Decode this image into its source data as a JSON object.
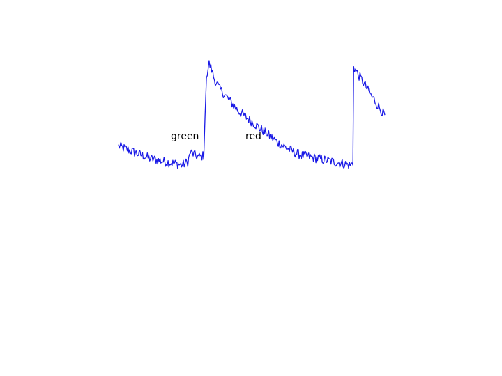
{
  "chart_data": {
    "type": "line",
    "title": "",
    "xlabel": "",
    "ylabel": "",
    "grid": false,
    "axes_visible": false,
    "line_color": "#1a1ae6",
    "annotations": [
      {
        "text": "green"
      },
      {
        "text": "red"
      }
    ],
    "xlim": [
      0,
      100
    ],
    "ylim": [
      0,
      100
    ],
    "series": [
      {
        "values": [
          [
            0,
            44
          ],
          [
            3,
            42
          ],
          [
            6,
            40
          ],
          [
            9,
            38
          ],
          [
            12,
            36
          ],
          [
            15,
            35
          ],
          [
            18,
            34
          ],
          [
            21,
            33
          ],
          [
            24,
            32
          ],
          [
            26,
            34
          ],
          [
            27,
            40
          ],
          [
            28,
            39
          ],
          [
            30,
            37
          ],
          [
            32,
            38
          ],
          [
            33,
            87
          ],
          [
            34,
            96
          ],
          [
            35,
            92
          ],
          [
            36,
            86
          ],
          [
            38,
            80
          ],
          [
            40,
            76
          ],
          [
            42,
            72
          ],
          [
            45,
            66
          ],
          [
            48,
            62
          ],
          [
            51,
            58
          ],
          [
            54,
            54
          ],
          [
            57,
            50
          ],
          [
            60,
            46
          ],
          [
            63,
            43
          ],
          [
            66,
            40
          ],
          [
            69,
            38
          ],
          [
            72,
            37
          ],
          [
            75,
            36
          ],
          [
            78,
            35
          ],
          [
            81,
            34
          ],
          [
            84,
            33
          ],
          [
            87,
            32
          ],
          [
            88,
            33
          ],
          [
            88.3,
            94
          ],
          [
            89,
            92
          ],
          [
            90,
            89
          ],
          [
            92,
            84
          ],
          [
            94,
            78
          ],
          [
            96,
            73
          ],
          [
            98,
            68
          ],
          [
            100,
            63
          ]
        ]
      }
    ]
  }
}
